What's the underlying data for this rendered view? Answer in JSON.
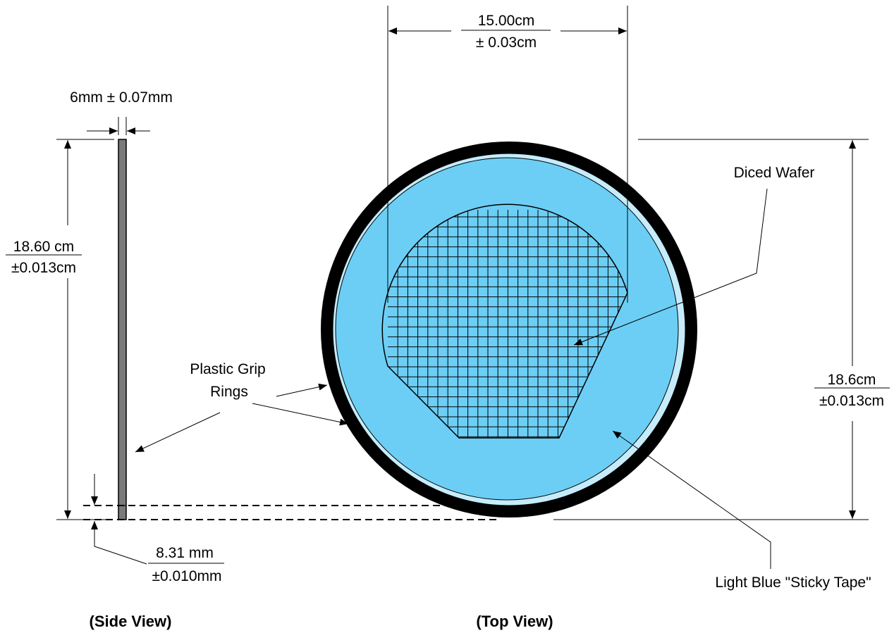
{
  "side_view": {
    "caption": "(Side View)",
    "thickness_label": "6mm ± 0.07mm",
    "height_label_top": "18.60 cm",
    "height_label_bottom": "±0.013cm",
    "offset_label_top": "8.31 mm",
    "offset_label_bottom": "±0.010mm"
  },
  "top_view": {
    "caption": "(Top View)",
    "wafer_width_top": "15.00cm",
    "wafer_width_bottom": "± 0.03cm",
    "ring_dia_top": "18.6cm",
    "ring_dia_bottom": "±0.013cm",
    "diced_wafer_label": "Diced Wafer",
    "tape_label": "Light Blue \"Sticky Tape\""
  },
  "grip_label_line1": "Plastic Grip",
  "grip_label_line2": "Rings",
  "colors": {
    "ring": "#000000",
    "tape": "#6ccef5",
    "tape_edge": "#c6ecfb",
    "side_bar": "#7a7a7a"
  }
}
